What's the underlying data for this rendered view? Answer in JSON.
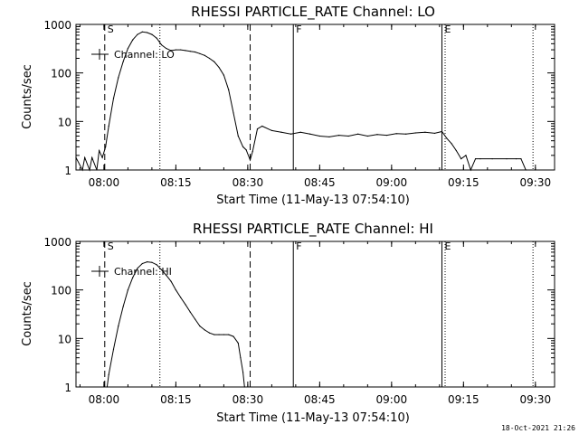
{
  "footer_timestamp": "18-Oct-2021 21:26",
  "chart_data": [
    {
      "type": "line",
      "scale": "log",
      "title": "RHESSI PARTICLE_RATE Channel: LO",
      "xlabel": "Start Time (11-May-13 07:54:10)",
      "ylabel": "Counts/sec",
      "xlim": [
        "07:54:10",
        "09:34:00"
      ],
      "ylim": [
        1,
        1000
      ],
      "xticks": [
        "08:00",
        "08:15",
        "08:30",
        "08:45",
        "09:00",
        "09:15",
        "09:30"
      ],
      "yticks": [
        "1",
        "10",
        "100",
        "1000"
      ],
      "legend": {
        "label": "Channel: LO",
        "position": "top-left"
      },
      "markers": [
        {
          "time": "08:00:10",
          "style": "dashed",
          "label": "S"
        },
        {
          "time": "08:11:40",
          "style": "dotted",
          "label": ""
        },
        {
          "time": "08:30:30",
          "style": "dashed",
          "label": ""
        },
        {
          "time": "08:39:30",
          "style": "solid",
          "label": "F"
        },
        {
          "time": "09:10:30",
          "style": "solid",
          "label": "E"
        },
        {
          "time": "09:11:10",
          "style": "dotted",
          "label": ""
        },
        {
          "time": "09:29:30",
          "style": "dotted",
          "label": ""
        }
      ],
      "series": [
        {
          "name": "Channel: LO",
          "x": [
            "07:54:10",
            "07:55:30",
            "07:56:00",
            "07:57:00",
            "07:57:30",
            "07:58:30",
            "07:59:00",
            "07:59:40",
            "08:00:20",
            "08:01:00",
            "08:02:00",
            "08:03:00",
            "08:04:00",
            "08:05:00",
            "08:06:00",
            "08:07:00",
            "08:08:00",
            "08:09:00",
            "08:10:00",
            "08:11:00",
            "08:12:00",
            "08:13:00",
            "08:14:00",
            "08:15:00",
            "08:16:00",
            "08:17:00",
            "08:18:00",
            "08:19:00",
            "08:20:00",
            "08:21:00",
            "08:22:00",
            "08:23:00",
            "08:24:00",
            "08:25:00",
            "08:26:00",
            "08:27:00",
            "08:28:00",
            "08:29:00",
            "08:29:40",
            "08:30:30",
            "08:31:00",
            "08:32:00",
            "08:33:00",
            "08:35:00",
            "08:37:00",
            "08:39:00",
            "08:41:00",
            "08:43:00",
            "08:45:00",
            "08:47:00",
            "08:49:00",
            "08:51:00",
            "08:53:00",
            "08:55:00",
            "08:57:00",
            "08:59:00",
            "09:01:00",
            "09:03:00",
            "09:05:00",
            "09:07:00",
            "09:09:00",
            "09:10:30",
            "09:11:30",
            "09:12:30",
            "09:13:30",
            "09:14:30",
            "09:15:30",
            "09:16:30",
            "09:17:30",
            "09:18:30",
            "09:21:00",
            "09:24:00",
            "09:26:00",
            "09:27:00",
            "09:28:00",
            "09:30:00"
          ],
          "values": [
            1.8,
            1.0,
            1.8,
            1.0,
            1.8,
            1.0,
            2.5,
            1.8,
            3.0,
            8,
            30,
            80,
            170,
            320,
            480,
            620,
            700,
            680,
            620,
            520,
            380,
            320,
            290,
            300,
            300,
            290,
            280,
            270,
            250,
            230,
            200,
            170,
            130,
            90,
            45,
            15,
            5,
            3,
            2.6,
            1.6,
            2.4,
            7,
            8,
            6.5,
            6.0,
            5.5,
            6.0,
            5.5,
            5.0,
            4.8,
            5.2,
            5.0,
            5.5,
            5.0,
            5.4,
            5.2,
            5.6,
            5.5,
            5.8,
            6.0,
            5.7,
            6.2,
            4.5,
            3.5,
            2.5,
            1.7,
            2.0,
            1.0,
            1.7,
            1.7,
            1.7,
            1.7,
            1.7,
            1.7,
            1.0,
            1.0
          ]
        }
      ]
    },
    {
      "type": "line",
      "scale": "log",
      "title": "RHESSI PARTICLE_RATE Channel: HI",
      "xlabel": "Start Time (11-May-13 07:54:10)",
      "ylabel": "Counts/sec",
      "xlim": [
        "07:54:10",
        "09:34:00"
      ],
      "ylim": [
        1,
        1000
      ],
      "xticks": [
        "08:00",
        "08:15",
        "08:30",
        "08:45",
        "09:00",
        "09:15",
        "09:30"
      ],
      "yticks": [
        "1",
        "10",
        "100",
        "1000"
      ],
      "legend": {
        "label": "Channel: HI",
        "position": "top-left"
      },
      "markers": [
        {
          "time": "08:00:10",
          "style": "dashed",
          "label": "S"
        },
        {
          "time": "08:11:40",
          "style": "dotted",
          "label": ""
        },
        {
          "time": "08:30:30",
          "style": "dashed",
          "label": ""
        },
        {
          "time": "08:39:30",
          "style": "solid",
          "label": "F"
        },
        {
          "time": "09:10:30",
          "style": "solid",
          "label": "E"
        },
        {
          "time": "09:11:10",
          "style": "dotted",
          "label": ""
        },
        {
          "time": "09:29:30",
          "style": "dotted",
          "label": ""
        }
      ],
      "series": [
        {
          "name": "Channel: HI",
          "x": [
            "08:00:40",
            "08:01:00",
            "08:02:00",
            "08:03:00",
            "08:04:00",
            "08:05:00",
            "08:06:00",
            "08:07:00",
            "08:08:00",
            "08:09:00",
            "08:10:00",
            "08:11:00",
            "08:12:00",
            "08:13:00",
            "08:14:00",
            "08:15:00",
            "08:16:00",
            "08:17:00",
            "08:18:00",
            "08:19:00",
            "08:20:00",
            "08:21:00",
            "08:22:00",
            "08:23:00",
            "08:24:00",
            "08:25:00",
            "08:26:00",
            "08:27:00",
            "08:28:00",
            "08:28:30",
            "08:29:00",
            "08:29:20"
          ],
          "values": [
            1.0,
            1.8,
            6,
            18,
            45,
            100,
            180,
            280,
            350,
            380,
            370,
            330,
            260,
            200,
            150,
            100,
            70,
            50,
            35,
            25,
            18,
            15,
            13,
            12,
            12,
            12,
            12,
            11,
            8,
            4,
            2,
            1.0
          ]
        }
      ]
    }
  ]
}
